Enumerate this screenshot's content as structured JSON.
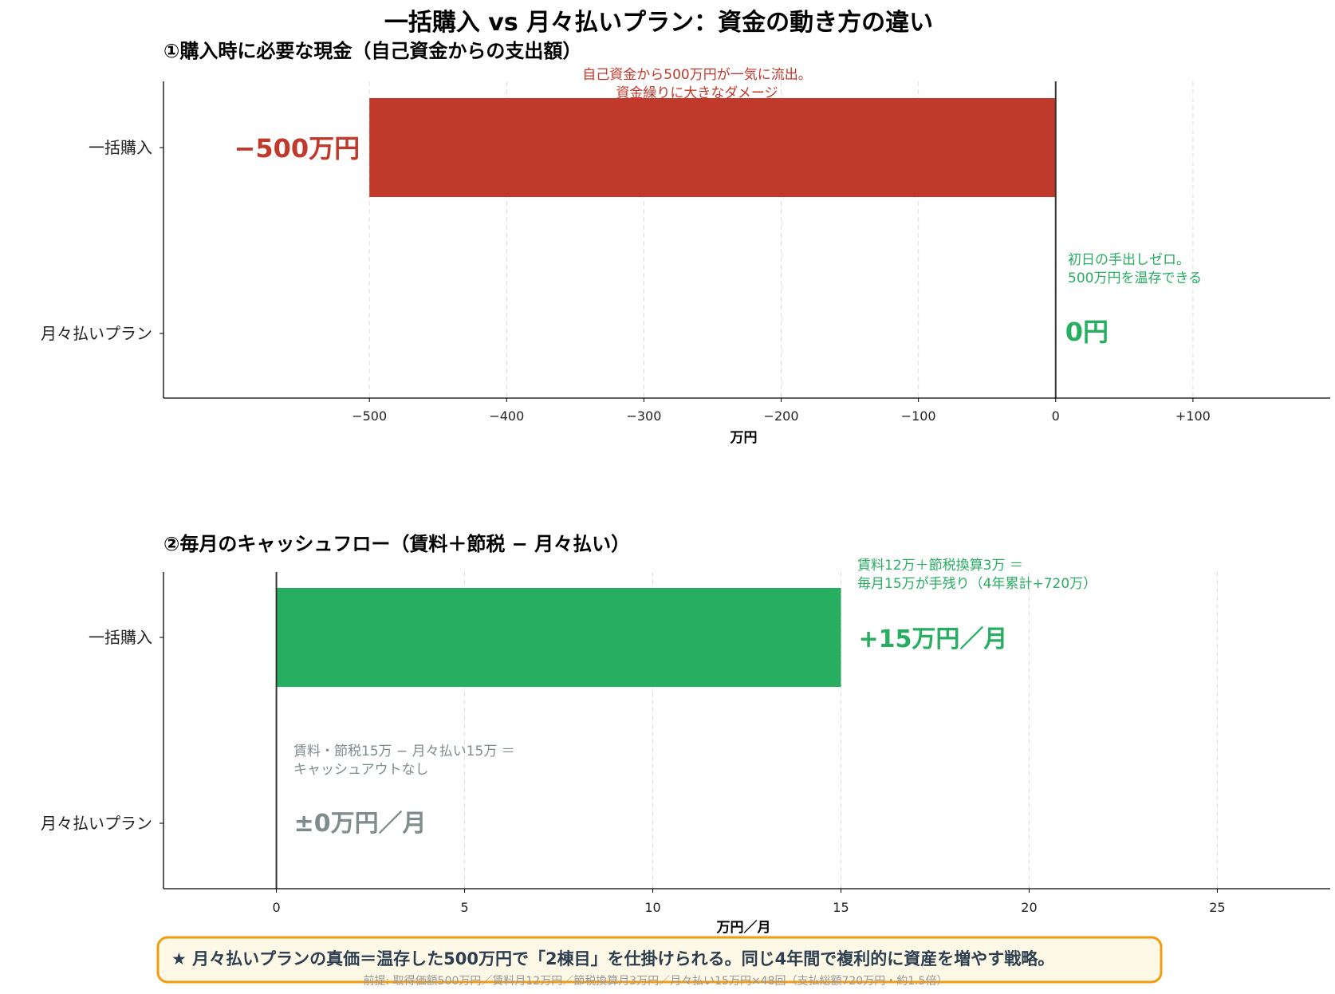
{
  "title": "一括購入 vs 月々払いプラン：資金の動き方の違い",
  "colors": {
    "red": "#c0392b",
    "green": "#27ae60",
    "grey": "#7f8c8d",
    "text": "#2c3e50",
    "note_bg": "#fef9e7",
    "note_border": "#f39c12"
  },
  "chart_data": [
    {
      "type": "bar",
      "orientation": "horizontal",
      "title": "①購入時に必要な現金（自己資金からの支出額）",
      "categories": [
        "一括購入",
        "月々払いプラン"
      ],
      "values": [
        -500,
        0
      ],
      "colors": [
        "#c0392b",
        "#27ae60"
      ],
      "xlabel": "万円",
      "xlim": [
        -650,
        200
      ],
      "xticks": [
        -500,
        -400,
        -300,
        -200,
        -100,
        0,
        100
      ],
      "xtick_labels": [
        "−500",
        "−400",
        "−300",
        "−200",
        "−100",
        "0",
        "+100"
      ],
      "grid": "x dashed",
      "value_labels": [
        "−500万円",
        "0円"
      ],
      "annotations": [
        {
          "lines": [
            "自己資金から500万円が一気に流出。",
            "資金繰りに大きなダメージ"
          ],
          "color": "#c0392b"
        },
        {
          "lines": [
            "初日の手出しゼロ。",
            "500万円を温存できる"
          ],
          "color": "#27ae60"
        }
      ]
    },
    {
      "type": "bar",
      "orientation": "horizontal",
      "title": "②毎月のキャッシュフロー（賃料＋節税 − 月々払い）",
      "categories": [
        "一括購入",
        "月々払いプラン"
      ],
      "values": [
        15,
        0
      ],
      "colors": [
        "#27ae60",
        "#7f8c8d"
      ],
      "xlabel": "万円／月",
      "xlim": [
        -3,
        28
      ],
      "xticks": [
        0,
        5,
        10,
        15,
        20,
        25
      ],
      "xtick_labels": [
        "0",
        "5",
        "10",
        "15",
        "20",
        "25"
      ],
      "grid": "x dashed",
      "value_labels": [
        "+15万円／月",
        "±0万円／月"
      ],
      "annotations": [
        {
          "lines": [
            "賃料12万＋節税換算3万 ＝",
            "毎月15万が手残り（4年累計+720万）"
          ],
          "color": "#27ae60"
        },
        {
          "lines": [
            "賃料・節税15万 − 月々払い15万 ＝",
            "キャッシュアウトなし"
          ],
          "color": "#7f8c8d"
        }
      ]
    }
  ],
  "footer": {
    "highlight": "★ 月々払いプランの真価＝温存した500万円で「2棟目」を仕掛けられる。同じ4年間で複利的に資産を増やす戦略。",
    "premise": "前提: 取得価額500万円／賃料月12万円／節税換算月3万円／月々払い15万円×48回（支払総額720万円・約1.5倍）"
  }
}
